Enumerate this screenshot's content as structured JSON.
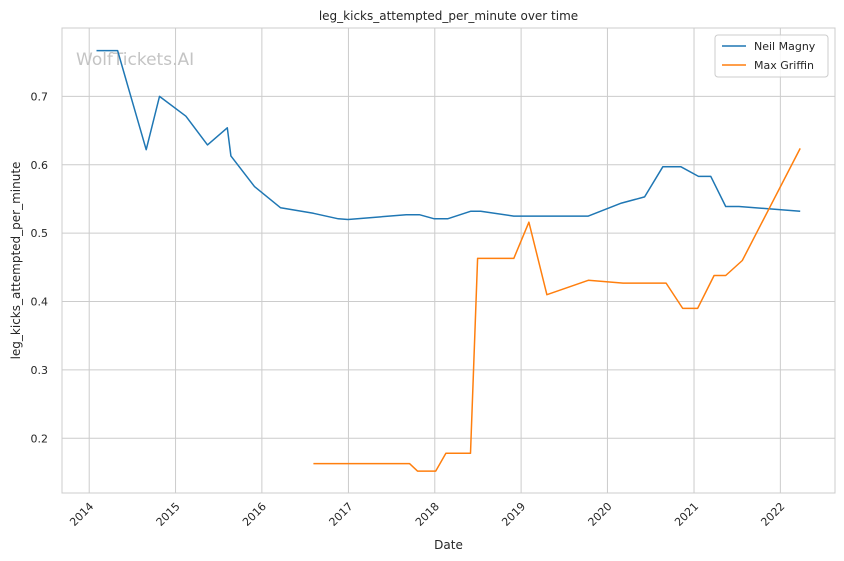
{
  "chart_data": {
    "type": "line",
    "title": "leg_kicks_attempted_per_minute over time",
    "xlabel": "Date",
    "ylabel": "leg_kicks_attempted_per_minute",
    "x_ticks": [
      "2014",
      "2015",
      "2016",
      "2017",
      "2018",
      "2019",
      "2020",
      "2021",
      "2022"
    ],
    "y_ticks": [
      "0.2",
      "0.3",
      "0.4",
      "0.5",
      "0.6",
      "0.7"
    ],
    "xlim": [
      "2013-09-08",
      "2022-08-20"
    ],
    "ylim": [
      0.12,
      0.8
    ],
    "grid": true,
    "legend_position": "top-right",
    "watermark": "WolfTickets.AI",
    "series": [
      {
        "name": "Neil Magny",
        "color": "#1f77b4",
        "points": [
          [
            "2014-02-01",
            0.767
          ],
          [
            "2014-05-01",
            0.767
          ],
          [
            "2014-08-30",
            0.622
          ],
          [
            "2014-10-25",
            0.7
          ],
          [
            "2015-02-14",
            0.671
          ],
          [
            "2015-05-16",
            0.629
          ],
          [
            "2015-08-08",
            0.654
          ],
          [
            "2015-08-23",
            0.613
          ],
          [
            "2015-12-01",
            0.568
          ],
          [
            "2016-03-20",
            0.537
          ],
          [
            "2016-08-06",
            0.529
          ],
          [
            "2016-11-19",
            0.521
          ],
          [
            "2016-12-30",
            0.52
          ],
          [
            "2017-09-02",
            0.527
          ],
          [
            "2017-10-28",
            0.527
          ],
          [
            "2017-12-30",
            0.521
          ],
          [
            "2018-02-24",
            0.521
          ],
          [
            "2018-06-01",
            0.532
          ],
          [
            "2018-07-14",
            0.532
          ],
          [
            "2018-12-01",
            0.525
          ],
          [
            "2019-06-29",
            0.525
          ],
          [
            "2019-10-12",
            0.525
          ],
          [
            "2020-02-29",
            0.544
          ],
          [
            "2020-06-06",
            0.553
          ],
          [
            "2020-08-22",
            0.597
          ],
          [
            "2020-11-07",
            0.597
          ],
          [
            "2021-01-20",
            0.583
          ],
          [
            "2021-03-13",
            0.583
          ],
          [
            "2021-05-15",
            0.539
          ],
          [
            "2021-07-10",
            0.539
          ],
          [
            "2022-03-26",
            0.532
          ]
        ]
      },
      {
        "name": "Max Griffin",
        "color": "#ff7f0e",
        "points": [
          [
            "2016-08-06",
            0.163
          ],
          [
            "2017-09-16",
            0.163
          ],
          [
            "2017-10-20",
            0.152
          ],
          [
            "2018-01-05",
            0.152
          ],
          [
            "2018-02-17",
            0.178
          ],
          [
            "2018-06-01",
            0.178
          ],
          [
            "2018-07-01",
            0.463
          ],
          [
            "2018-12-01",
            0.463
          ],
          [
            "2019-02-03",
            0.516
          ],
          [
            "2019-04-20",
            0.41
          ],
          [
            "2019-10-12",
            0.431
          ],
          [
            "2020-03-07",
            0.427
          ],
          [
            "2020-09-05",
            0.427
          ],
          [
            "2020-11-14",
            0.39
          ],
          [
            "2021-01-16",
            0.39
          ],
          [
            "2021-03-27",
            0.438
          ],
          [
            "2021-05-15",
            0.438
          ],
          [
            "2021-07-24",
            0.46
          ],
          [
            "2022-03-26",
            0.624
          ]
        ]
      }
    ]
  }
}
